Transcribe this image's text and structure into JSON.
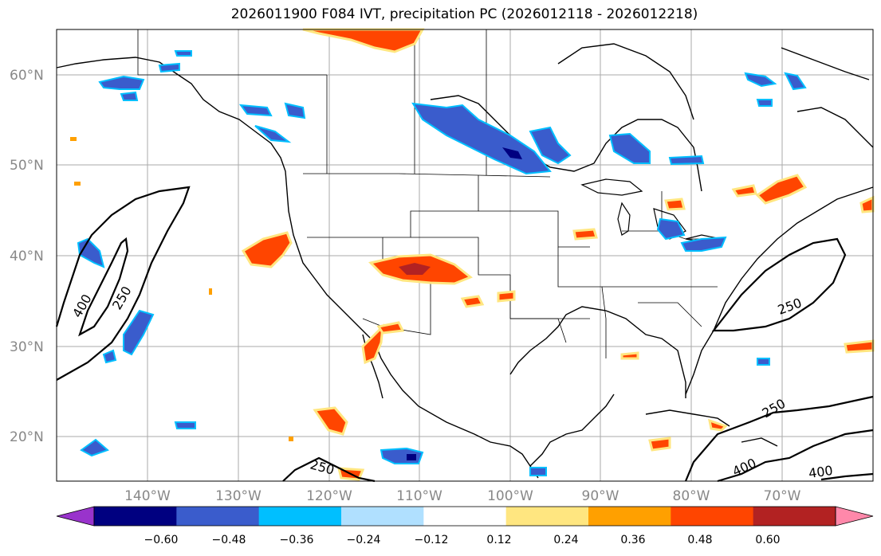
{
  "title": "2026011900 F084 IVT, precipitation PC (2026012118 - 2026012218)",
  "lat_labels": [
    "60°N",
    "50°N",
    "40°N",
    "30°N",
    "20°N"
  ],
  "lon_labels": [
    "140°W",
    "130°W",
    "120°W",
    "110°W",
    "100°W",
    "90°W",
    "80°W",
    "70°W"
  ],
  "colorbar": {
    "ticks": [
      "−0.60",
      "−0.48",
      "−0.36",
      "−0.24",
      "−0.12",
      "0.12",
      "0.24",
      "0.36",
      "0.48",
      "0.60"
    ],
    "colors": [
      "#9933cc",
      "#000080",
      "#3a5ccc",
      "#00bfff",
      "#b0e0ff",
      "#ffffff",
      "#ffe680",
      "#ffa000",
      "#ff4500",
      "#b22222",
      "#ff88aa"
    ]
  },
  "ivt_contour_labels": [
    "400",
    "250",
    "250",
    "250",
    "250",
    "400",
    "400"
  ],
  "colors": {
    "negative_fill": "#3a5ccc",
    "positive_fill": "#ff4500",
    "grid": "#aaaaaa"
  }
}
